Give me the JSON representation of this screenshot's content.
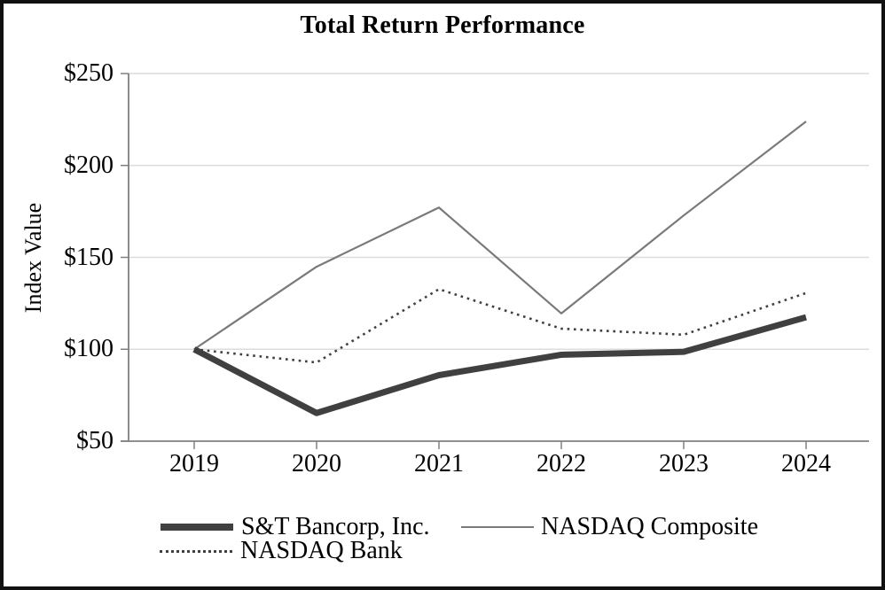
{
  "title": "Total Return Performance",
  "chart_data": {
    "type": "line",
    "title": "Total Return Performance",
    "xlabel": "",
    "ylabel": "Index Value",
    "x": [
      2019,
      2020,
      2021,
      2022,
      2023,
      2024
    ],
    "xtick_labels": [
      "2019",
      "2020",
      "2021",
      "2022",
      "2023",
      "2024"
    ],
    "ytick_labels": [
      "$50",
      "$100",
      "$150",
      "$200",
      "$250"
    ],
    "ylim": [
      50,
      250
    ],
    "grid": "horizontal",
    "legend_position": "bottom-left",
    "series": [
      {
        "name": "S&T Bancorp, Inc.",
        "values": [
          100,
          65.3,
          85.9,
          97.0,
          98.6,
          117.4
        ],
        "color": "#404040",
        "style": "solid-thick"
      },
      {
        "name": "NASDAQ Composite",
        "values": [
          100,
          144.9,
          177.1,
          119.5,
          172.8,
          223.9
        ],
        "color": "#7a7a7a",
        "style": "solid-thin"
      },
      {
        "name": "NASDAQ Bank",
        "values": [
          100,
          92.8,
          132.7,
          111.2,
          107.9,
          130.6
        ],
        "color": "#404040",
        "style": "dotted"
      }
    ],
    "colors": {
      "gridline": "#dcdcdc",
      "axis": "#808080",
      "text": "#000000",
      "frame": "#111111"
    }
  }
}
